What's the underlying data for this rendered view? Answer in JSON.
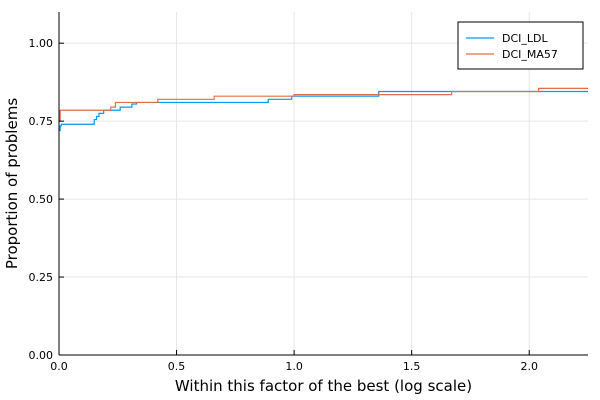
{
  "chart_data": {
    "type": "line",
    "step": true,
    "xlabel": "Within this factor of the best (log scale)",
    "ylabel": "Proportion of problems",
    "xlim": [
      0,
      2.25
    ],
    "ylim": [
      0,
      1.1
    ],
    "x_ticks": [
      "0.0",
      "0.5",
      "1.0",
      "1.5",
      "2.0"
    ],
    "y_ticks": [
      "0.00",
      "0.25",
      "0.50",
      "0.75",
      "1.00"
    ],
    "grid": true,
    "legend_position": "top-right",
    "series": [
      {
        "name": "DCI_LDL",
        "color": "#009af9",
        "points": [
          [
            0.0,
            0.72
          ],
          [
            0.005,
            0.735
          ],
          [
            0.01,
            0.74
          ],
          [
            0.15,
            0.755
          ],
          [
            0.16,
            0.765
          ],
          [
            0.17,
            0.775
          ],
          [
            0.19,
            0.785
          ],
          [
            0.26,
            0.795
          ],
          [
            0.31,
            0.805
          ],
          [
            0.33,
            0.81
          ],
          [
            0.89,
            0.82
          ],
          [
            0.99,
            0.83
          ],
          [
            1.36,
            0.845
          ],
          [
            2.25,
            0.845
          ]
        ]
      },
      {
        "name": "DCI_MA57",
        "color": "#e26f46",
        "points": [
          [
            0.0,
            0.75
          ],
          [
            0.005,
            0.785
          ],
          [
            0.22,
            0.795
          ],
          [
            0.24,
            0.81
          ],
          [
            0.42,
            0.82
          ],
          [
            0.66,
            0.83
          ],
          [
            1.0,
            0.835
          ],
          [
            1.67,
            0.845
          ],
          [
            2.04,
            0.855
          ],
          [
            2.25,
            0.855
          ]
        ]
      }
    ]
  }
}
